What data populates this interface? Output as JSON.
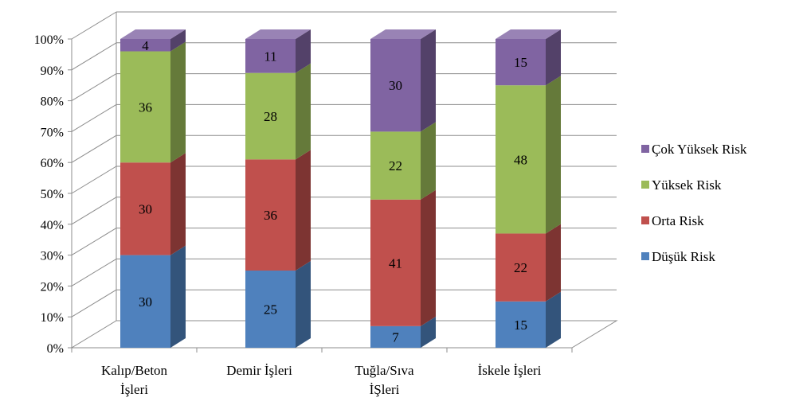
{
  "chart_data": {
    "type": "bar",
    "stacked": "percent",
    "style": "3d-column",
    "title": "",
    "xlabel": "",
    "ylabel": "",
    "ylim": [
      0,
      100
    ],
    "y_ticks": [
      "0%",
      "10%",
      "20%",
      "30%",
      "40%",
      "50%",
      "60%",
      "70%",
      "80%",
      "90%",
      "100%"
    ],
    "grid": true,
    "legend_position": "right",
    "categories": [
      [
        "Kalıp/Beton",
        "İşleri"
      ],
      [
        "Demir İşleri"
      ],
      [
        "Tuğla/Sıva",
        "İŞleri"
      ],
      [
        "İskele İşleri"
      ]
    ],
    "series": [
      {
        "name": "Düşük Risk",
        "color": "#4F81BD",
        "values": [
          30,
          25,
          7,
          15
        ]
      },
      {
        "name": "Orta Risk",
        "color": "#C0504D",
        "values": [
          30,
          36,
          41,
          22
        ]
      },
      {
        "name": "Yüksek Risk",
        "color": "#9BBB59",
        "values": [
          36,
          28,
          22,
          48
        ]
      },
      {
        "name": "Çok Yüksek Risk",
        "color": "#8064A2",
        "values": [
          4,
          11,
          30,
          15
        ]
      }
    ]
  }
}
